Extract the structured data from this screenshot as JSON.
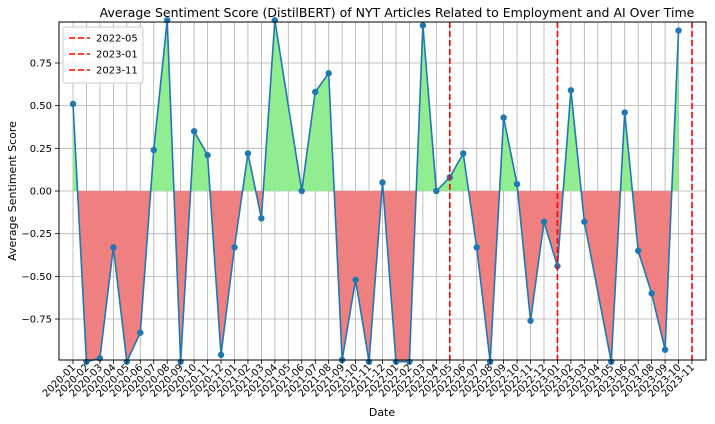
{
  "chart_data": {
    "type": "line",
    "title": "Average Sentiment Score (DistilBERT) of NYT Articles Related to Employment and AI Over Time",
    "xlabel": "Date",
    "ylabel": "Average Sentiment Score",
    "ylim": [
      -0.99,
      0.99
    ],
    "yticks": [
      -0.75,
      -0.5,
      -0.25,
      0.0,
      0.25,
      0.5,
      0.75
    ],
    "ytick_labels": [
      "−0.75",
      "−0.50",
      "−0.25",
      "0.00",
      "0.25",
      "0.50",
      "0.75"
    ],
    "grid": true,
    "legend_position": "top-left",
    "x": [
      "2020-01",
      "2020-02",
      "2020-03",
      "2020-04",
      "2020-05",
      "2020-06",
      "2020-07",
      "2020-08",
      "2020-09",
      "2020-10",
      "2020-11",
      "2020-12",
      "2021-01",
      "2021-02",
      "2021-03",
      "2021-04",
      "2021-05",
      "2021-06",
      "2021-07",
      "2021-08",
      "2021-09",
      "2021-10",
      "2021-11",
      "2021-12",
      "2022-01",
      "2022-02",
      "2022-03",
      "2022-04",
      "2022-05",
      "2022-06",
      "2022-07",
      "2022-08",
      "2022-09",
      "2022-10",
      "2022-11",
      "2022-12",
      "2023-01",
      "2023-02",
      "2023-03",
      "2023-04",
      "2023-05",
      "2023-06",
      "2023-07",
      "2023-08",
      "2023-09",
      "2023-10",
      "2023-11"
    ],
    "series": [
      {
        "name": "",
        "color": "#1f77b4",
        "values": [
          {
            "date": "2020-01",
            "value": 0.51
          },
          {
            "date": "2020-02",
            "value": -1.0
          },
          {
            "date": "2020-03",
            "value": -0.98
          },
          {
            "date": "2020-04",
            "value": -0.33
          },
          {
            "date": "2020-05",
            "value": -1.0
          },
          {
            "date": "2020-06",
            "value": -0.83
          },
          {
            "date": "2020-07",
            "value": 0.24
          },
          {
            "date": "2020-08",
            "value": 1.0
          },
          {
            "date": "2020-09",
            "value": -1.0
          },
          {
            "date": "2020-10",
            "value": 0.35
          },
          {
            "date": "2020-11",
            "value": 0.21
          },
          {
            "date": "2020-12",
            "value": -0.96
          },
          {
            "date": "2021-01",
            "value": -0.33
          },
          {
            "date": "2021-02",
            "value": 0.22
          },
          {
            "date": "2021-03",
            "value": -0.16
          },
          {
            "date": "2021-04",
            "value": 1.0
          },
          {
            "date": "2021-06",
            "value": 0.0
          },
          {
            "date": "2021-07",
            "value": 0.58
          },
          {
            "date": "2021-08",
            "value": 0.69
          },
          {
            "date": "2021-09",
            "value": -0.99
          },
          {
            "date": "2021-10",
            "value": -0.52
          },
          {
            "date": "2021-11",
            "value": -1.0
          },
          {
            "date": "2021-12",
            "value": 0.05
          },
          {
            "date": "2022-01",
            "value": -1.0
          },
          {
            "date": "2022-02",
            "value": -1.0
          },
          {
            "date": "2022-03",
            "value": 0.97
          },
          {
            "date": "2022-04",
            "value": 0.0
          },
          {
            "date": "2022-05",
            "value": 0.08
          },
          {
            "date": "2022-06",
            "value": 0.22
          },
          {
            "date": "2022-07",
            "value": -0.33
          },
          {
            "date": "2022-08",
            "value": -1.0
          },
          {
            "date": "2022-09",
            "value": 0.43
          },
          {
            "date": "2022-10",
            "value": 0.04
          },
          {
            "date": "2022-11",
            "value": -0.76
          },
          {
            "date": "2022-12",
            "value": -0.18
          },
          {
            "date": "2023-01",
            "value": -0.44
          },
          {
            "date": "2023-02",
            "value": 0.59
          },
          {
            "date": "2023-03",
            "value": -0.18
          },
          {
            "date": "2023-05",
            "value": -1.0
          },
          {
            "date": "2023-06",
            "value": 0.46
          },
          {
            "date": "2023-07",
            "value": -0.35
          },
          {
            "date": "2023-08",
            "value": -0.6
          },
          {
            "date": "2023-09",
            "value": -0.93
          },
          {
            "date": "2023-10",
            "value": 0.94
          }
        ]
      }
    ],
    "fill_colors": {
      "positive": "#90ee90",
      "negative": "#f08080"
    },
    "vlines": [
      {
        "label": "2022-05",
        "date": "2022-05",
        "color": "#ff0000"
      },
      {
        "label": "2023-01",
        "date": "2023-01",
        "color": "#ff0000"
      },
      {
        "label": "2023-11",
        "date": "2023-11",
        "color": "#ff0000"
      }
    ]
  }
}
